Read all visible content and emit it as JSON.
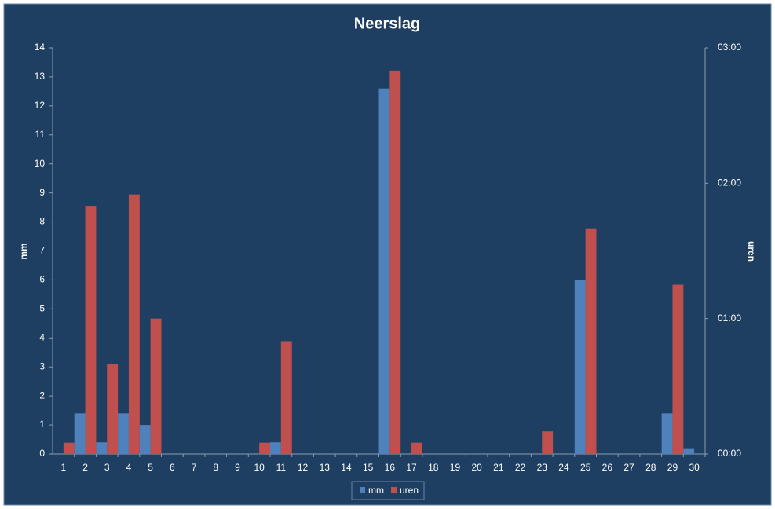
{
  "chart_data": {
    "type": "bar",
    "title": "Neerslag",
    "categories": [
      "1",
      "2",
      "3",
      "4",
      "5",
      "6",
      "7",
      "8",
      "9",
      "10",
      "11",
      "12",
      "13",
      "14",
      "15",
      "16",
      "17",
      "18",
      "19",
      "20",
      "21",
      "22",
      "23",
      "24",
      "25",
      "26",
      "27",
      "28",
      "29",
      "30"
    ],
    "series": [
      {
        "name": "mm",
        "color": "#4f81bd",
        "values": [
          0,
          1.4,
          0.4,
          1.4,
          1.0,
          0,
          0,
          0,
          0,
          0,
          0.4,
          0,
          0,
          0,
          0,
          12.6,
          0,
          0,
          0,
          0,
          0,
          0,
          0,
          0,
          6.0,
          0,
          0,
          0,
          1.4,
          0.2
        ]
      },
      {
        "name": "uren",
        "color": "#c0504d",
        "axis": "y2",
        "values": [
          0.083,
          1.833,
          0.667,
          1.917,
          1.0,
          0,
          0,
          0,
          0,
          0.083,
          0.833,
          0,
          0,
          0,
          0,
          2.833,
          0.083,
          0,
          0,
          0,
          0,
          0,
          0.167,
          0,
          1.667,
          0,
          0,
          0,
          1.25,
          0
        ]
      }
    ],
    "y_label": "mm",
    "y2_label": "uren",
    "ylim": [
      0,
      14
    ],
    "yticks": [
      0,
      1,
      2,
      3,
      4,
      5,
      6,
      7,
      8,
      9,
      10,
      11,
      12,
      13,
      14
    ],
    "y2lim": [
      0,
      3
    ],
    "y2ticks": [
      {
        "value": 0,
        "label": "00:00"
      },
      {
        "value": 1,
        "label": "01:00"
      },
      {
        "value": 2,
        "label": "02:00"
      },
      {
        "value": 3,
        "label": "03:00"
      }
    ],
    "grid": false,
    "legend": "bottom"
  }
}
